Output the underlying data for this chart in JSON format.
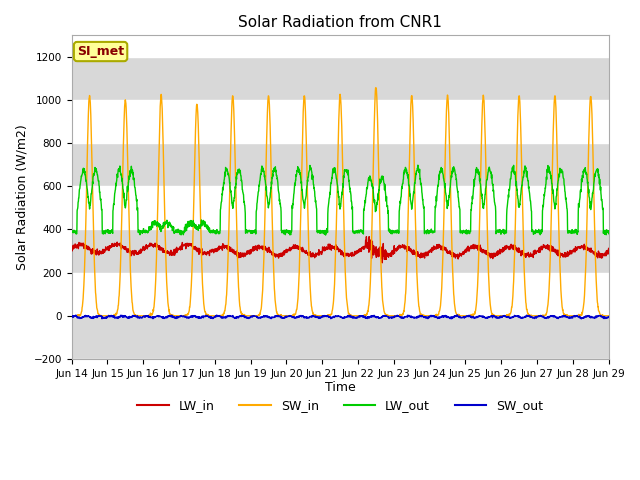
{
  "title": "Solar Radiation from CNR1",
  "xlabel": "Time",
  "ylabel": "Solar Radiation (W/m2)",
  "ylim": [
    -200,
    1300
  ],
  "yticks": [
    -200,
    0,
    200,
    400,
    600,
    800,
    1000,
    1200
  ],
  "xlim": [
    0,
    15
  ],
  "xtick_labels": [
    "Jun 14",
    "Jun 15",
    "Jun 16",
    "Jun 17",
    "Jun 18",
    "Jun 19",
    "Jun 20",
    "Jun 21",
    "Jun 22",
    "Jun 23",
    "Jun 24",
    "Jun 25",
    "Jun 26",
    "Jun 27",
    "Jun 28",
    "Jun 29"
  ],
  "colors": {
    "LW_in": "#cc0000",
    "SW_in": "#ffaa00",
    "LW_out": "#00cc00",
    "SW_out": "#0000cc"
  },
  "plot_bg": "#ffffff",
  "stripe_color": "#d8d8d8",
  "annotation_text": "SI_met",
  "annotation_box_color": "#ffff99",
  "annotation_border_color": "#aaaa00",
  "annotation_text_color": "#880000",
  "legend_labels": [
    "LW_in",
    "SW_in",
    "LW_out",
    "SW_out"
  ],
  "num_days": 15
}
